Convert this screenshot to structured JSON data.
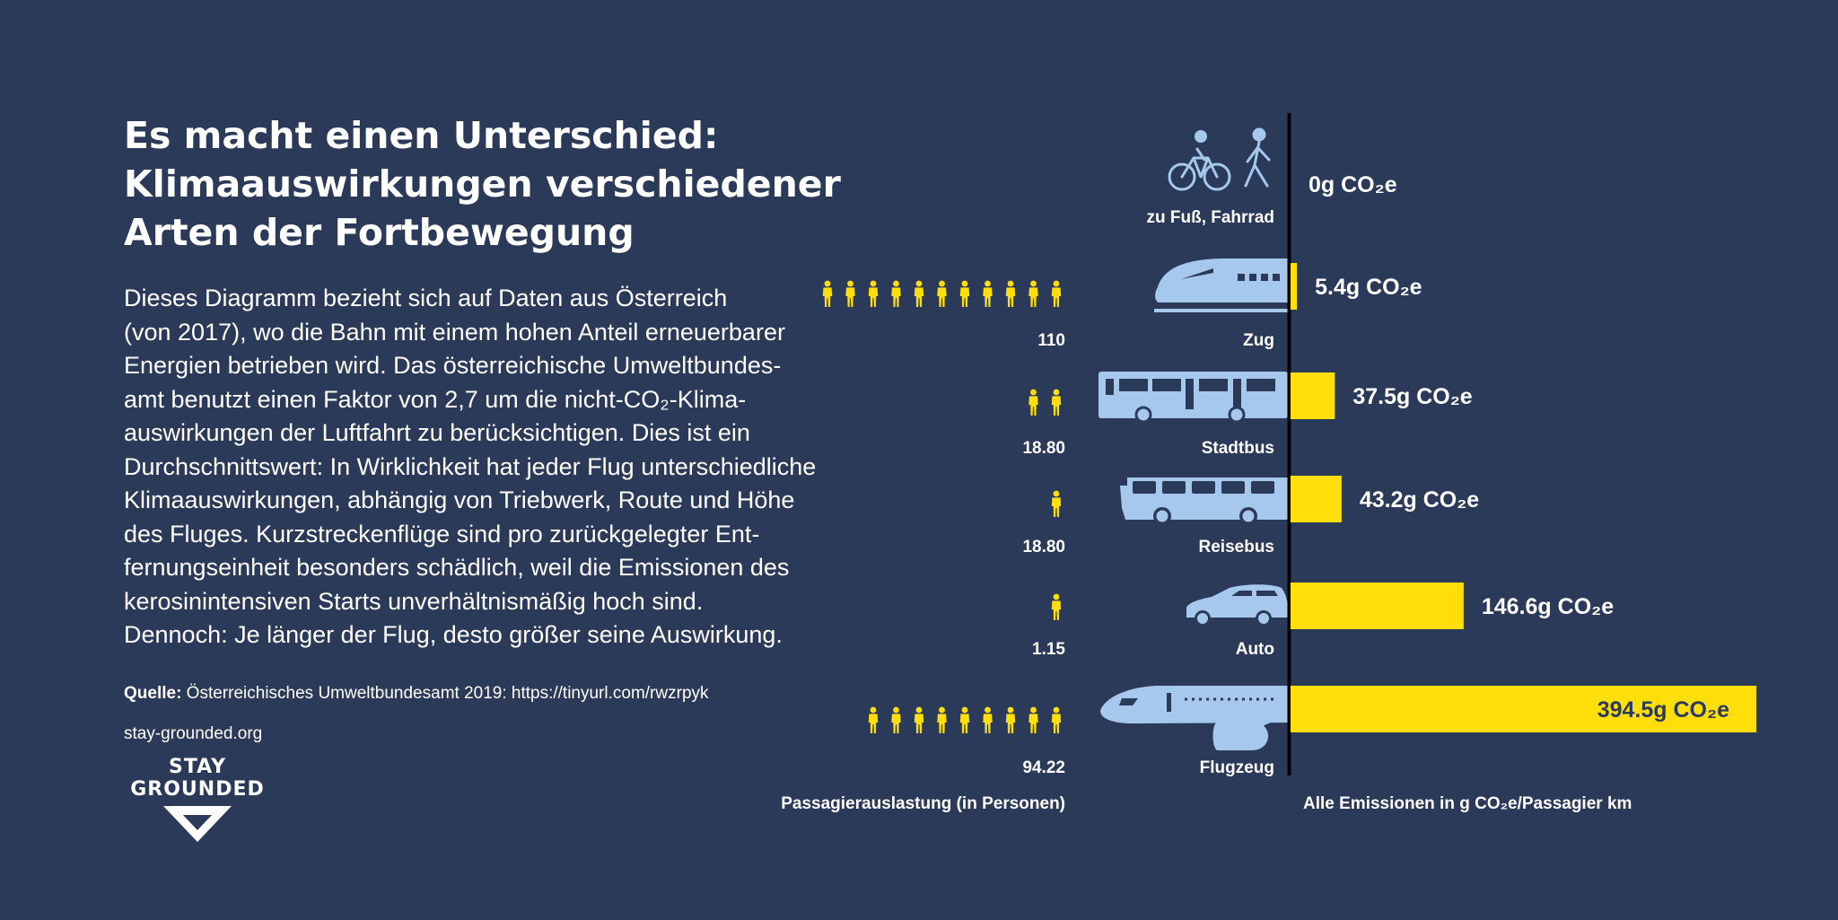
{
  "title": {
    "lines": [
      "Es macht einen Unterschied:",
      "Klimaauswirkungen verschiedener",
      "Arten der Fortbewegung"
    ]
  },
  "description": {
    "lines": [
      "Dieses Diagramm bezieht sich auf Daten aus Österreich",
      "(von 2017), wo die Bahn mit einem hohen Anteil erneuerbarer",
      "Energien betrieben wird. Das österreichische Umweltbundes-",
      "amt benutzt einen Faktor von 2,7 um die nicht-CO₂-Klima-",
      "auswirkungen der Luftfahrt zu berücksichtigen. Dies ist ein",
      "Durchschnittswert: In Wirklichkeit hat jeder Flug unterschiedliche",
      "Klimaauswirkungen, abhängig von Triebwerk, Route und Höhe",
      "des Fluges. Kurzstreckenflüge sind pro zurückgelegter Ent-",
      "fernungseinheit besonders schädlich, weil die Emissionen des",
      "kerosinintensiven Starts unverhältnismäßig hoch sind.",
      "Dennoch: Je länger der Flug, desto größer seine Auswirkung."
    ]
  },
  "source": {
    "label": "Quelle:",
    "text": " Österreichisches Umweltbundesamt 2019: https://tinyurl.com/rwzrpyk"
  },
  "website": "stay-grounded.org",
  "logo": {
    "line1": "STAY",
    "line2": "GROUNDED"
  },
  "colors": {
    "background": "#2c3a5a",
    "bar": "#ffde0a",
    "icon": "#a6c8ec",
    "person": "#ffde0a",
    "text": "#ffffff",
    "axis": "#000000"
  },
  "chart_data": {
    "type": "bar",
    "orientation": "horizontal",
    "categories": [
      "zu Fuß, Fahrrad",
      "Zug",
      "Stadtbus",
      "Reisebus",
      "Auto",
      "Flugzeug"
    ],
    "icons": [
      "bicycle-walker-icon",
      "train-icon",
      "city-bus-icon",
      "coach-bus-icon",
      "car-icon",
      "airplane-icon"
    ],
    "series": [
      {
        "values": [
          0,
          5.4,
          37.5,
          43.2,
          146.6,
          394.5
        ],
        "value_labels": [
          "0g CO₂e",
          "5.4g CO₂e",
          "37.5g CO₂e",
          "43.2g CO₂e",
          "146.6g CO₂e",
          "394.5g CO₂e"
        ]
      }
    ],
    "passenger_load": {
      "values": [
        null,
        110,
        18.8,
        18.8,
        1.15,
        94.22
      ],
      "labels": [
        "",
        "110",
        "18.80",
        "18.80",
        "1.15",
        "94.22"
      ],
      "person_icons": [
        0,
        11,
        2,
        1,
        1,
        9
      ],
      "xlabel": "Passagierauslastung (in Personen)"
    },
    "xlabel": "Alle Emissionen in g CO₂e/Passagier km",
    "xlim": [
      0,
      394.5
    ]
  }
}
